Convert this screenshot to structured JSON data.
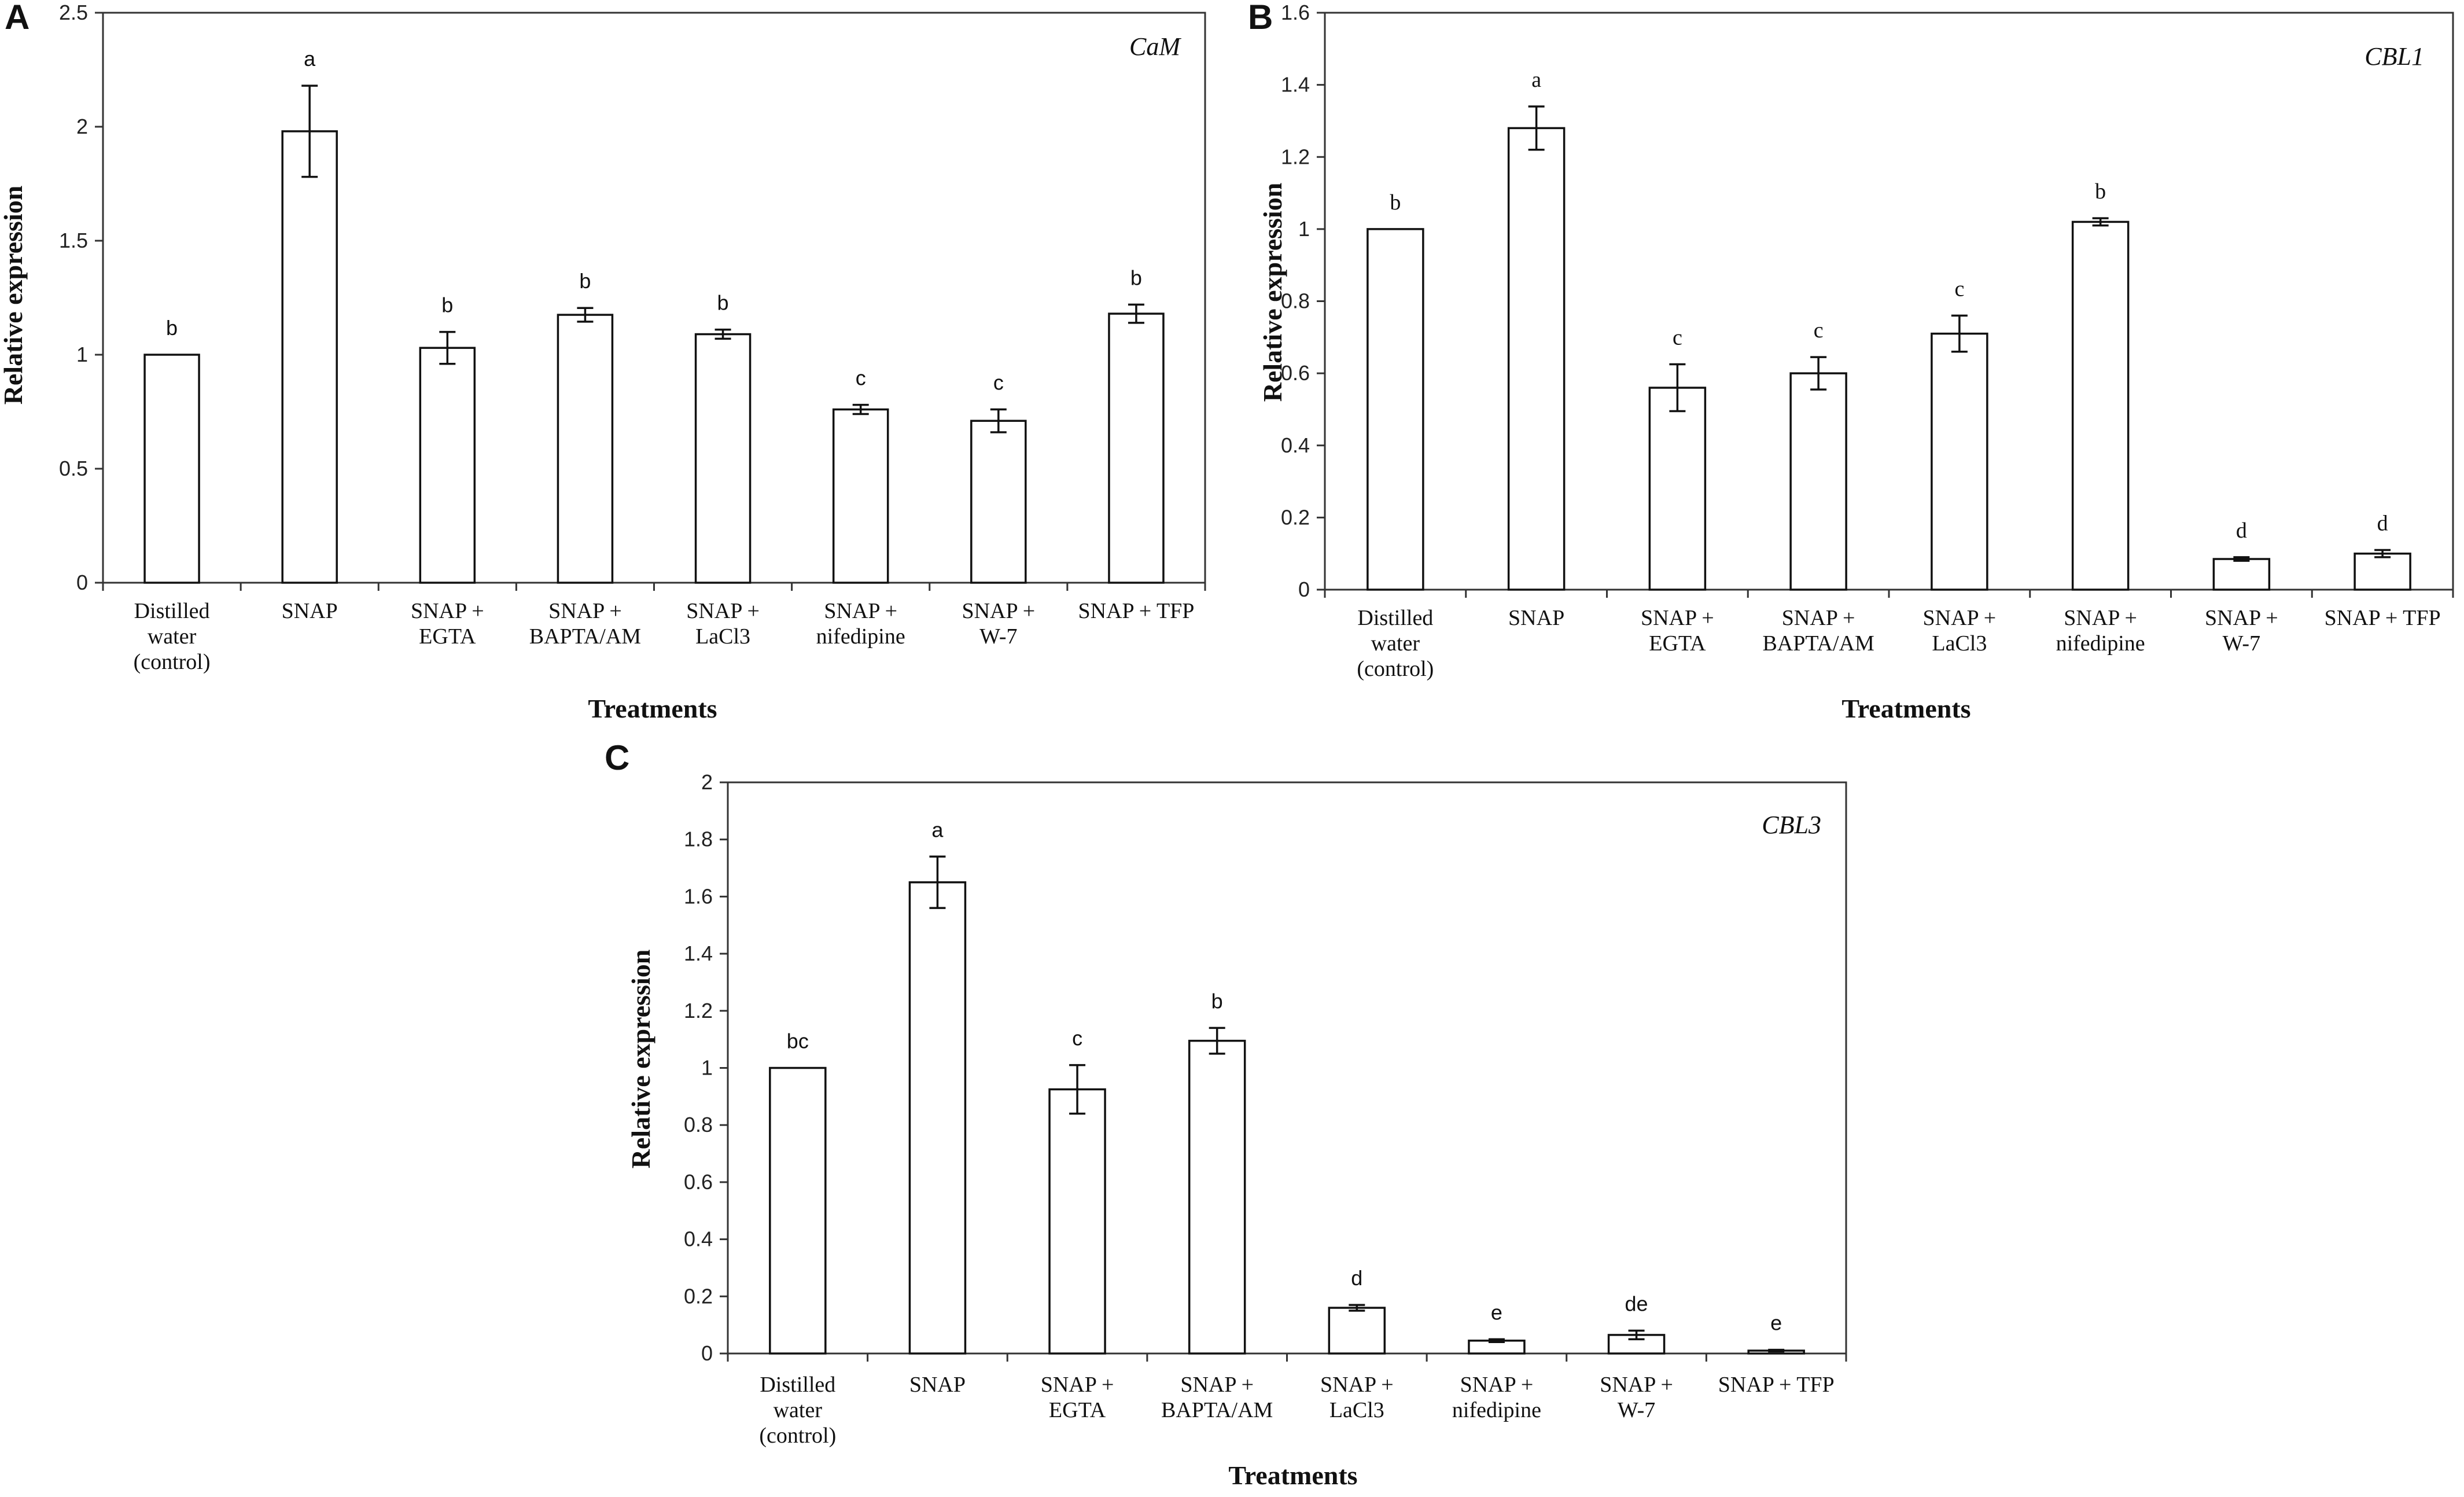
{
  "figure": {
    "x_axis_title": "Treatments",
    "y_axis_title": "Relative expression"
  },
  "categories": [
    [
      "Distilled",
      "water",
      "(control)"
    ],
    [
      "SNAP"
    ],
    [
      "SNAP +",
      "EGTA"
    ],
    [
      "SNAP +",
      "BAPTA/AM"
    ],
    [
      "SNAP +",
      "LaCl3"
    ],
    [
      "SNAP +",
      "nifedipine"
    ],
    [
      "SNAP +",
      "W-7"
    ],
    [
      "SNAP + TFP"
    ]
  ],
  "chart_data": [
    {
      "type": "bar",
      "panel": "A",
      "gene": "CaM",
      "title": "CaM",
      "xlabel": "Treatments",
      "ylabel": "Relative expression",
      "ylim": [
        0,
        2.5
      ],
      "yticks": [
        0,
        0.5,
        1,
        1.5,
        2,
        2.5
      ],
      "ytick_labels": [
        "0",
        "0.5",
        "1",
        "1.5",
        "2",
        "2.5"
      ],
      "values": [
        1.0,
        1.98,
        1.03,
        1.175,
        1.09,
        0.76,
        0.71,
        1.18
      ],
      "errors": [
        0,
        0.2,
        0.07,
        0.03,
        0.02,
        0.02,
        0.05,
        0.04
      ],
      "letters": [
        "b",
        "a",
        "b",
        "b",
        "b",
        "c",
        "c",
        "b"
      ]
    },
    {
      "type": "bar",
      "panel": "B",
      "gene": "CBL1",
      "title": "CBL1",
      "xlabel": "Treatments",
      "ylabel": "Relative expression",
      "ylim": [
        0,
        1.6
      ],
      "yticks": [
        0,
        0.2,
        0.4,
        0.6,
        0.8,
        1,
        1.2,
        1.4,
        1.6
      ],
      "ytick_labels": [
        "0",
        "0.2",
        "0.4",
        "0.6",
        "0.8",
        "1",
        "1.2",
        "1.4",
        "1.6"
      ],
      "values": [
        1.0,
        1.28,
        0.56,
        0.6,
        0.71,
        1.02,
        0.085,
        0.1
      ],
      "errors": [
        0,
        0.06,
        0.065,
        0.045,
        0.05,
        0.01,
        0.005,
        0.01
      ],
      "letters": [
        "b",
        "a",
        "c",
        "c",
        "c",
        "b",
        "d",
        "d"
      ]
    },
    {
      "type": "bar",
      "panel": "C",
      "gene": "CBL3",
      "title": "CBL3",
      "xlabel": "Treatments",
      "ylabel": "Relative expression",
      "ylim": [
        0,
        2
      ],
      "yticks": [
        0,
        0.2,
        0.4,
        0.6,
        0.8,
        1,
        1.2,
        1.4,
        1.6,
        1.8,
        2
      ],
      "ytick_labels": [
        "0",
        "0.2",
        "0.4",
        "0.6",
        "0.8",
        "1",
        "1.2",
        "1.4",
        "1.6",
        "1.8",
        "2"
      ],
      "values": [
        1.0,
        1.65,
        0.925,
        1.095,
        0.16,
        0.045,
        0.065,
        0.01
      ],
      "errors": [
        0,
        0.09,
        0.085,
        0.045,
        0.01,
        0.005,
        0.015,
        0.003
      ],
      "letters": [
        "bc",
        "a",
        "c",
        "b",
        "d",
        "e",
        "de",
        "e"
      ]
    }
  ]
}
